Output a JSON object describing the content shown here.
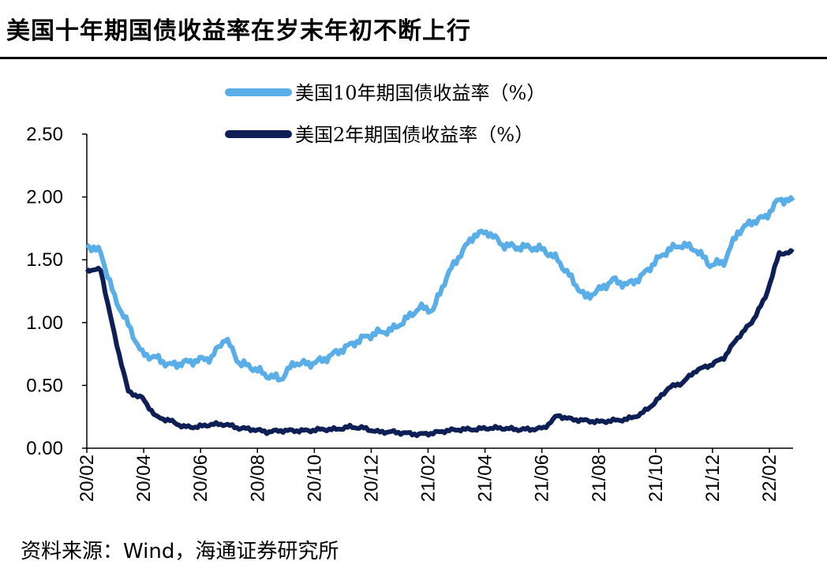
{
  "header": {
    "title": "美国十年期国债收益率在岁末年初不断上行"
  },
  "footer": {
    "source": "资料来源：Wind，海通证券研究所"
  },
  "chart_data": {
    "type": "line",
    "title": "美国十年期国债收益率在岁末年初不断上行",
    "xlabel": "",
    "ylabel": "",
    "ylim": [
      0,
      2.5
    ],
    "yticks": [
      "0.00",
      "0.50",
      "1.00",
      "1.50",
      "2.00",
      "2.50"
    ],
    "xticks": [
      "20/02",
      "20/04",
      "20/06",
      "20/08",
      "20/10",
      "20/12",
      "21/02",
      "21/04",
      "21/06",
      "21/08",
      "21/10",
      "21/12",
      "22/02"
    ],
    "legend_position": "top",
    "grid": false,
    "x": [
      "20/02",
      "20/02",
      "20/03",
      "20/03",
      "20/03",
      "20/04",
      "20/04",
      "20/05",
      "20/05",
      "20/06",
      "20/06",
      "20/07",
      "20/07",
      "20/08",
      "20/08",
      "20/09",
      "20/09",
      "20/10",
      "20/10",
      "20/11",
      "20/11",
      "20/12",
      "20/12",
      "21/01",
      "21/01",
      "21/02",
      "21/02",
      "21/03",
      "21/03",
      "21/04",
      "21/04",
      "21/05",
      "21/05",
      "21/06",
      "21/06",
      "21/07",
      "21/07",
      "21/08",
      "21/08",
      "21/09",
      "21/09",
      "21/10",
      "21/10",
      "21/11",
      "21/11",
      "21/12",
      "21/12",
      "22/01",
      "22/01",
      "22/02",
      "22/02",
      "22/03"
    ],
    "series": [
      {
        "name": "美国10年期国债收益率（%）",
        "color": "#5aaee8",
        "values": [
          1.62,
          1.56,
          1.2,
          0.98,
          0.75,
          0.72,
          0.66,
          0.68,
          0.7,
          0.72,
          0.88,
          0.68,
          0.64,
          0.58,
          0.55,
          0.68,
          0.67,
          0.7,
          0.76,
          0.82,
          0.88,
          0.92,
          0.94,
          1.02,
          1.12,
          1.1,
          1.37,
          1.55,
          1.7,
          1.72,
          1.62,
          1.6,
          1.6,
          1.58,
          1.5,
          1.35,
          1.2,
          1.26,
          1.34,
          1.3,
          1.36,
          1.48,
          1.58,
          1.62,
          1.58,
          1.46,
          1.48,
          1.72,
          1.8,
          1.84,
          1.98,
          1.97
        ]
      },
      {
        "name": "美国2年期国债收益率（%）",
        "color": "#0d1f55",
        "values": [
          1.42,
          1.42,
          0.9,
          0.45,
          0.4,
          0.25,
          0.22,
          0.17,
          0.17,
          0.19,
          0.19,
          0.16,
          0.15,
          0.13,
          0.14,
          0.14,
          0.14,
          0.15,
          0.15,
          0.17,
          0.16,
          0.13,
          0.13,
          0.12,
          0.11,
          0.12,
          0.14,
          0.15,
          0.15,
          0.16,
          0.16,
          0.15,
          0.15,
          0.16,
          0.26,
          0.23,
          0.22,
          0.21,
          0.22,
          0.23,
          0.27,
          0.36,
          0.48,
          0.52,
          0.62,
          0.66,
          0.72,
          0.88,
          1.0,
          1.2,
          1.55,
          1.56
        ]
      }
    ]
  }
}
